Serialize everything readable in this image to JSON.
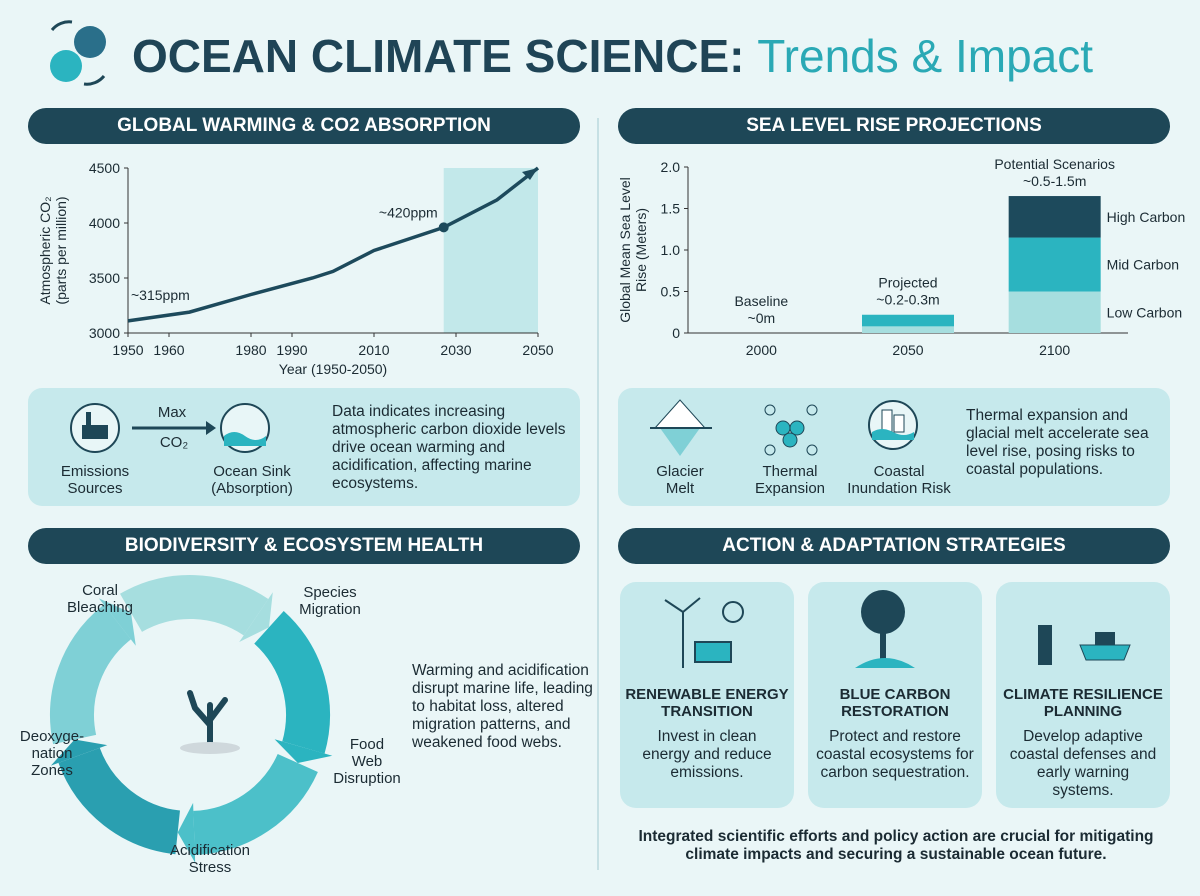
{
  "header": {
    "title": "OCEAN CLIMATE SCIENCE:",
    "title_accent": "Trends & Impact"
  },
  "panels": {
    "co2": {
      "heading": "GLOBAL WARMING & CO2 ABSORPTION",
      "emissions": "Emissions\nSources",
      "arrow_top": "Max",
      "arrow_bottom": "CO₂",
      "sink": "Ocean Sink\n(Absorption)",
      "text": "Data indicates increasing atmospheric carbon dioxide levels drive ocean warming and acidification, affecting marine ecosystems."
    },
    "sea": {
      "heading": "SEA LEVEL RISE PROJECTIONS",
      "glacier": "Glacier\nMelt",
      "thermal": "Thermal\nExpansion",
      "coastal": "Coastal\nInundation Risk",
      "text": "Thermal expansion and glacial melt accelerate sea level rise, posing risks to coastal populations."
    },
    "bio": {
      "heading": "BIODIVERSITY & ECOSYSTEM HEALTH",
      "stages": [
        "Coral\nBleaching",
        "Species\nMigration",
        "Food\nWeb\nDisruption",
        "Acidification\nStress",
        "Deoxyge-\nnation\nZones"
      ],
      "text": "Warming and acidification disrupt marine life, leading to habitat loss, altered migration patterns, and weakened food webs."
    },
    "action": {
      "heading": "ACTION & ADAPTATION STRATEGIES",
      "cards": [
        {
          "title": "RENEWABLE ENERGY\nTRANSITION",
          "text": "Invest in clean energy and reduce emissions."
        },
        {
          "title": "BLUE CARBON\nRESTORATION",
          "text": "Protect and restore coastal ecosystems for carbon sequestration."
        },
        {
          "title": "CLIMATE RESILIENCE\nPLANNING",
          "text": "Develop adaptive coastal defenses and early warning systems."
        }
      ],
      "footer": "Integrated scientific efforts and policy action are crucial for mitigating climate impacts and securing a sustainable ocean future."
    }
  },
  "chart_data": [
    {
      "type": "line",
      "xlabel": "Year (1950-2050)",
      "ylabel": [
        "Atmospheric CO₂",
        "(parts per million)"
      ],
      "x": [
        1950,
        1965,
        1980,
        1995,
        2000,
        2010,
        2027,
        2040,
        2050
      ],
      "values": [
        3110,
        3190,
        3350,
        3500,
        3560,
        3750,
        3960,
        4210,
        4500
      ],
      "color": "#1d4a5c",
      "xlim": [
        1950,
        2050
      ],
      "xticks": [
        1950,
        1960,
        1980,
        1990,
        2010,
        2030,
        2050
      ],
      "ylim": [
        3000,
        4500
      ],
      "yticks": [
        3000,
        3500,
        4000,
        4500
      ],
      "projection_range": [
        2027,
        2050
      ],
      "projection_color": "#c2e8ea",
      "annotations": [
        {
          "text": "~315ppm",
          "x": 1950,
          "y": 3300
        },
        {
          "text": "~420ppm",
          "x": 2027,
          "y": 3960,
          "marker": true
        }
      ]
    },
    {
      "type": "stacked_bar",
      "categories": [
        "2000",
        "2050",
        "2100"
      ],
      "ylabel": [
        "Global Mean Sea Level",
        "Rise (Meters)"
      ],
      "series": [
        {
          "name": "Low Carbon",
          "color": "#a6dedf",
          "values": [
            0,
            0.08,
            0.5
          ]
        },
        {
          "name": "Mid Carbon",
          "color": "#2bb4c0",
          "values": [
            0,
            0.14,
            0.65
          ]
        },
        {
          "name": "High Carbon",
          "color": "#1d4a5c",
          "values": [
            0,
            0,
            0.5
          ]
        }
      ],
      "ylim": [
        0,
        2
      ],
      "yticks": [
        0,
        0.5,
        {
          "value": 1,
          "label": "1.0"
        },
        1.5,
        {
          "value": 2,
          "label": "2.0"
        }
      ],
      "annotations": [
        [
          "Baseline",
          "~0m"
        ],
        [
          "Projected",
          "~0.2-0.3m"
        ],
        [
          "Potential Scenarios",
          "~0.5-1.5m"
        ]
      ]
    }
  ]
}
